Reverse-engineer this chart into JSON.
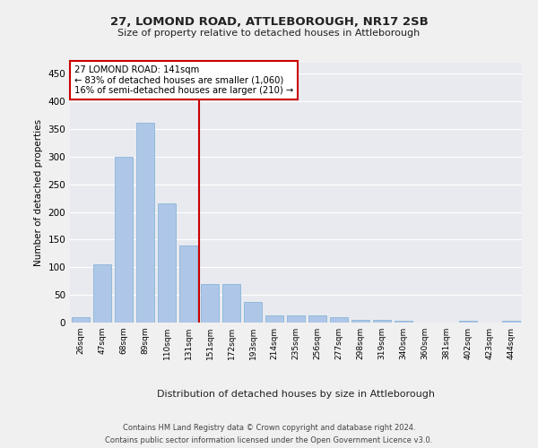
{
  "title": "27, LOMOND ROAD, ATTLEBOROUGH, NR17 2SB",
  "subtitle": "Size of property relative to detached houses in Attleborough",
  "xlabel": "Distribution of detached houses by size in Attleborough",
  "ylabel": "Number of detached properties",
  "footnote1": "Contains HM Land Registry data © Crown copyright and database right 2024.",
  "footnote2": "Contains public sector information licensed under the Open Government Licence v3.0.",
  "categories": [
    "26sqm",
    "47sqm",
    "68sqm",
    "89sqm",
    "110sqm",
    "131sqm",
    "151sqm",
    "172sqm",
    "193sqm",
    "214sqm",
    "235sqm",
    "256sqm",
    "277sqm",
    "298sqm",
    "319sqm",
    "340sqm",
    "360sqm",
    "381sqm",
    "402sqm",
    "423sqm",
    "444sqm"
  ],
  "values": [
    10,
    105,
    300,
    362,
    215,
    140,
    70,
    70,
    37,
    13,
    13,
    13,
    10,
    5,
    5,
    3,
    0,
    0,
    3,
    0,
    3
  ],
  "bar_color": "#aec6e8",
  "bar_edge_color": "#7bafd4",
  "background_color": "#e8eaf0",
  "grid_color": "#ffffff",
  "annotation_text": "27 LOMOND ROAD: 141sqm\n← 83% of detached houses are smaller (1,060)\n16% of semi-detached houses are larger (210) →",
  "vline_color": "#cc0000",
  "box_color": "#ffffff",
  "box_edge_color": "#cc0000",
  "fig_background": "#f0f0f0",
  "ylim": [
    0,
    470
  ],
  "yticks": [
    0,
    50,
    100,
    150,
    200,
    250,
    300,
    350,
    400,
    450
  ]
}
